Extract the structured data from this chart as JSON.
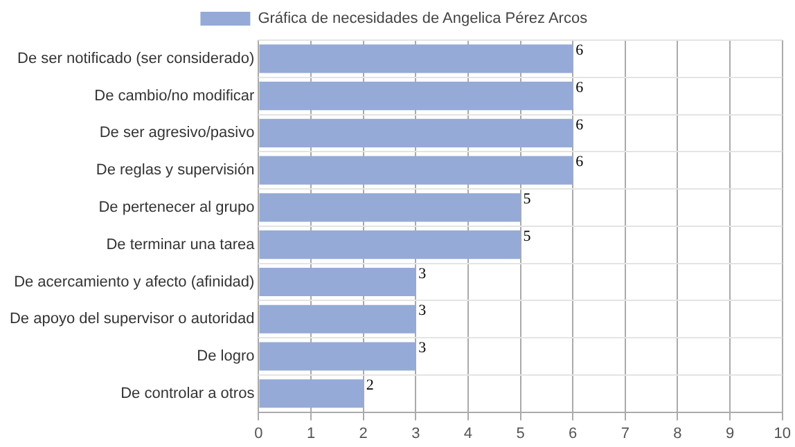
{
  "chart_data": {
    "type": "bar",
    "orientation": "horizontal",
    "categories": [
      "De ser notificado (ser considerado)",
      "De cambio/no modificar",
      "De ser agresivo/pasivo",
      "De reglas y supervisión",
      "De pertenecer al grupo",
      "De terminar una tarea",
      "De acercamiento y afecto (afinidad)",
      "De apoyo del supervisor o autoridad",
      "De logro",
      "De controlar a otros"
    ],
    "series": [
      {
        "name": "Gráfica de necesidades de Angelica Pérez Arcos",
        "color": "#95aad6",
        "values": [
          6,
          6,
          6,
          6,
          5,
          5,
          3,
          3,
          3,
          2
        ]
      }
    ],
    "xlim": [
      0,
      10
    ],
    "xticks": [
      0,
      1,
      2,
      3,
      4,
      5,
      6,
      7,
      8,
      9,
      10
    ],
    "grid": true,
    "legend": "top",
    "data_labels": true
  }
}
